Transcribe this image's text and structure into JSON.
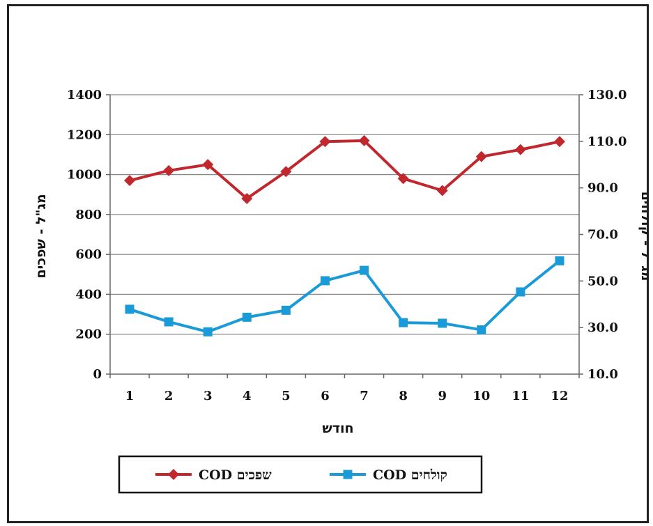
{
  "chart_data": {
    "type": "line",
    "categories": [
      "1",
      "2",
      "3",
      "4",
      "5",
      "6",
      "7",
      "8",
      "9",
      "10",
      "11",
      "12"
    ],
    "xlabel": "חודש",
    "ylabel": "מג\"ל - שפכים",
    "y2label": "מג\"ל - קולחים",
    "ylim": [
      0,
      1400
    ],
    "yticks": [
      "0",
      "200",
      "400",
      "600",
      "800",
      "1000",
      "1200",
      "1400"
    ],
    "y2lim": [
      10,
      130
    ],
    "y2ticks": [
      "10.0",
      "30.0",
      "50.0",
      "70.0",
      "90.0",
      "110.0",
      "130.0"
    ],
    "grid": true,
    "legend_position": "bottom",
    "series": [
      {
        "name": "COD שפכים",
        "axis": "left",
        "color": "#c0282e",
        "marker": "diamond",
        "values": [
          970,
          1020,
          1050,
          880,
          1015,
          1165,
          1170,
          980,
          920,
          1090,
          1125,
          1165
        ]
      },
      {
        "name": "COD קולחים",
        "axis": "left",
        "color": "#1a9ad6",
        "marker": "square",
        "values": [
          325,
          262,
          212,
          285,
          320,
          468,
          520,
          258,
          255,
          222,
          412,
          568
        ]
      }
    ]
  }
}
